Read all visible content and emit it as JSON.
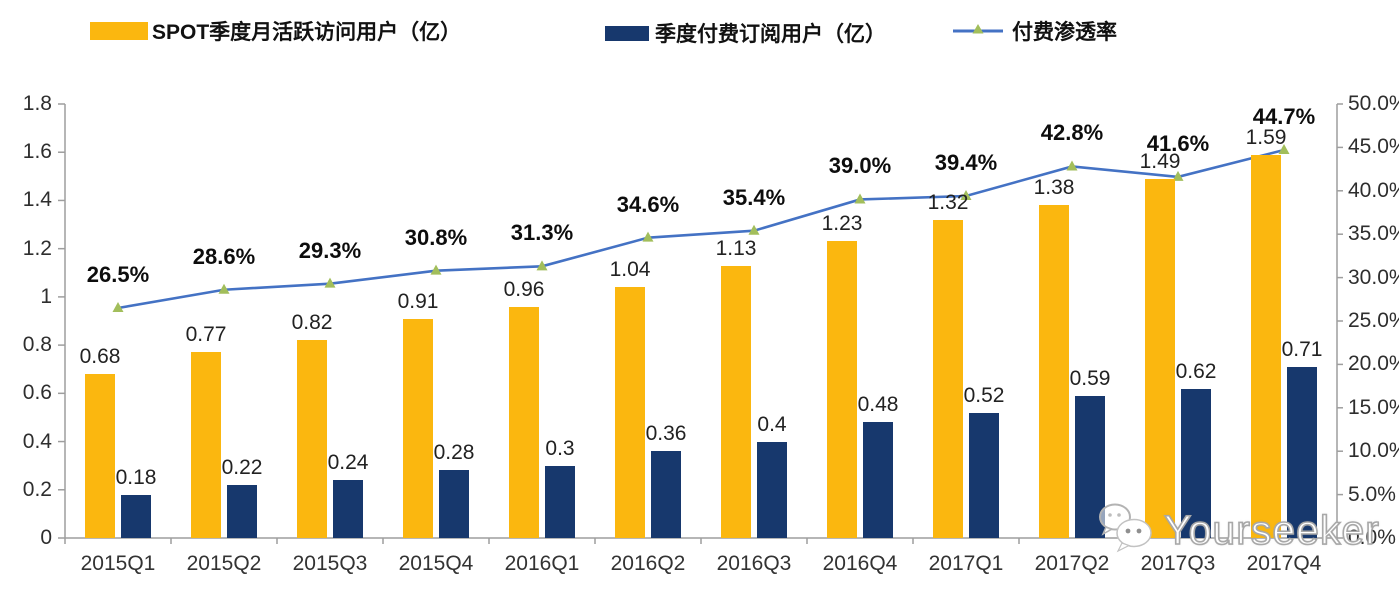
{
  "legend": {
    "items": [
      {
        "label": "SPOT季度月活跃访问用户（亿）",
        "color": "#FBB70F",
        "type": "bar"
      },
      {
        "label": "季度付费订阅用户（亿）",
        "color": "#17386D",
        "type": "bar"
      },
      {
        "label": "付费渗透率",
        "color": "#4472C4",
        "marker_color": "#A2BE5B",
        "type": "line"
      }
    ]
  },
  "chart_data": {
    "type": "combo-bar-line",
    "categories": [
      "2015Q1",
      "2015Q2",
      "2015Q3",
      "2015Q4",
      "2016Q1",
      "2016Q2",
      "2016Q3",
      "2016Q4",
      "2017Q1",
      "2017Q2",
      "2017Q3",
      "2017Q4"
    ],
    "series": [
      {
        "name": "SPOT季度月活跃访问用户（亿）",
        "type": "bar",
        "axis": "left",
        "color": "#FBB70F",
        "values": [
          0.68,
          0.77,
          0.82,
          0.91,
          0.96,
          1.04,
          1.13,
          1.23,
          1.32,
          1.38,
          1.49,
          1.59
        ],
        "labels": [
          "0.68",
          "0.77",
          "0.82",
          "0.91",
          "0.96",
          "1.04",
          "1.13",
          "1.23",
          "1.32",
          "1.38",
          "1.49",
          "1.59"
        ]
      },
      {
        "name": "季度付费订阅用户（亿）",
        "type": "bar",
        "axis": "left",
        "color": "#17386D",
        "values": [
          0.18,
          0.22,
          0.24,
          0.28,
          0.3,
          0.36,
          0.4,
          0.48,
          0.52,
          0.59,
          0.62,
          0.71
        ],
        "labels": [
          "0.18",
          "0.22",
          "0.24",
          "0.28",
          "0.3",
          "0.36",
          "0.4",
          "0.48",
          "0.52",
          "0.59",
          "0.62",
          "0.71"
        ]
      },
      {
        "name": "付费渗透率",
        "type": "line",
        "axis": "right",
        "color": "#4472C4",
        "marker": "triangle",
        "marker_color": "#A2BE5B",
        "values": [
          26.5,
          28.6,
          29.3,
          30.8,
          31.3,
          34.6,
          35.4,
          39.0,
          39.4,
          42.8,
          41.6,
          44.7
        ],
        "labels": [
          "26.5%",
          "28.6%",
          "29.3%",
          "30.8%",
          "31.3%",
          "34.6%",
          "35.4%",
          "39.0%",
          "39.4%",
          "42.8%",
          "41.6%",
          "44.7%"
        ]
      }
    ],
    "left_axis": {
      "min": 0,
      "max": 1.8,
      "tick_labels": [
        "0",
        "0.2",
        "0.4",
        "0.6",
        "0.8",
        "1",
        "1.2",
        "1.4",
        "1.6",
        "1.8"
      ]
    },
    "right_axis": {
      "min": 0,
      "max": 50,
      "tick_labels": [
        "0.0%",
        "5.0%",
        "10.0%",
        "15.0%",
        "20.0%",
        "25.0%",
        "30.0%",
        "35.0%",
        "40.0%",
        "45.0%",
        "50.0%"
      ]
    },
    "grid": false,
    "legend_position": "top",
    "axis_color": "#9e9e9e"
  },
  "watermark": {
    "text": "Yourseeker",
    "icon": "wechat-icon"
  }
}
